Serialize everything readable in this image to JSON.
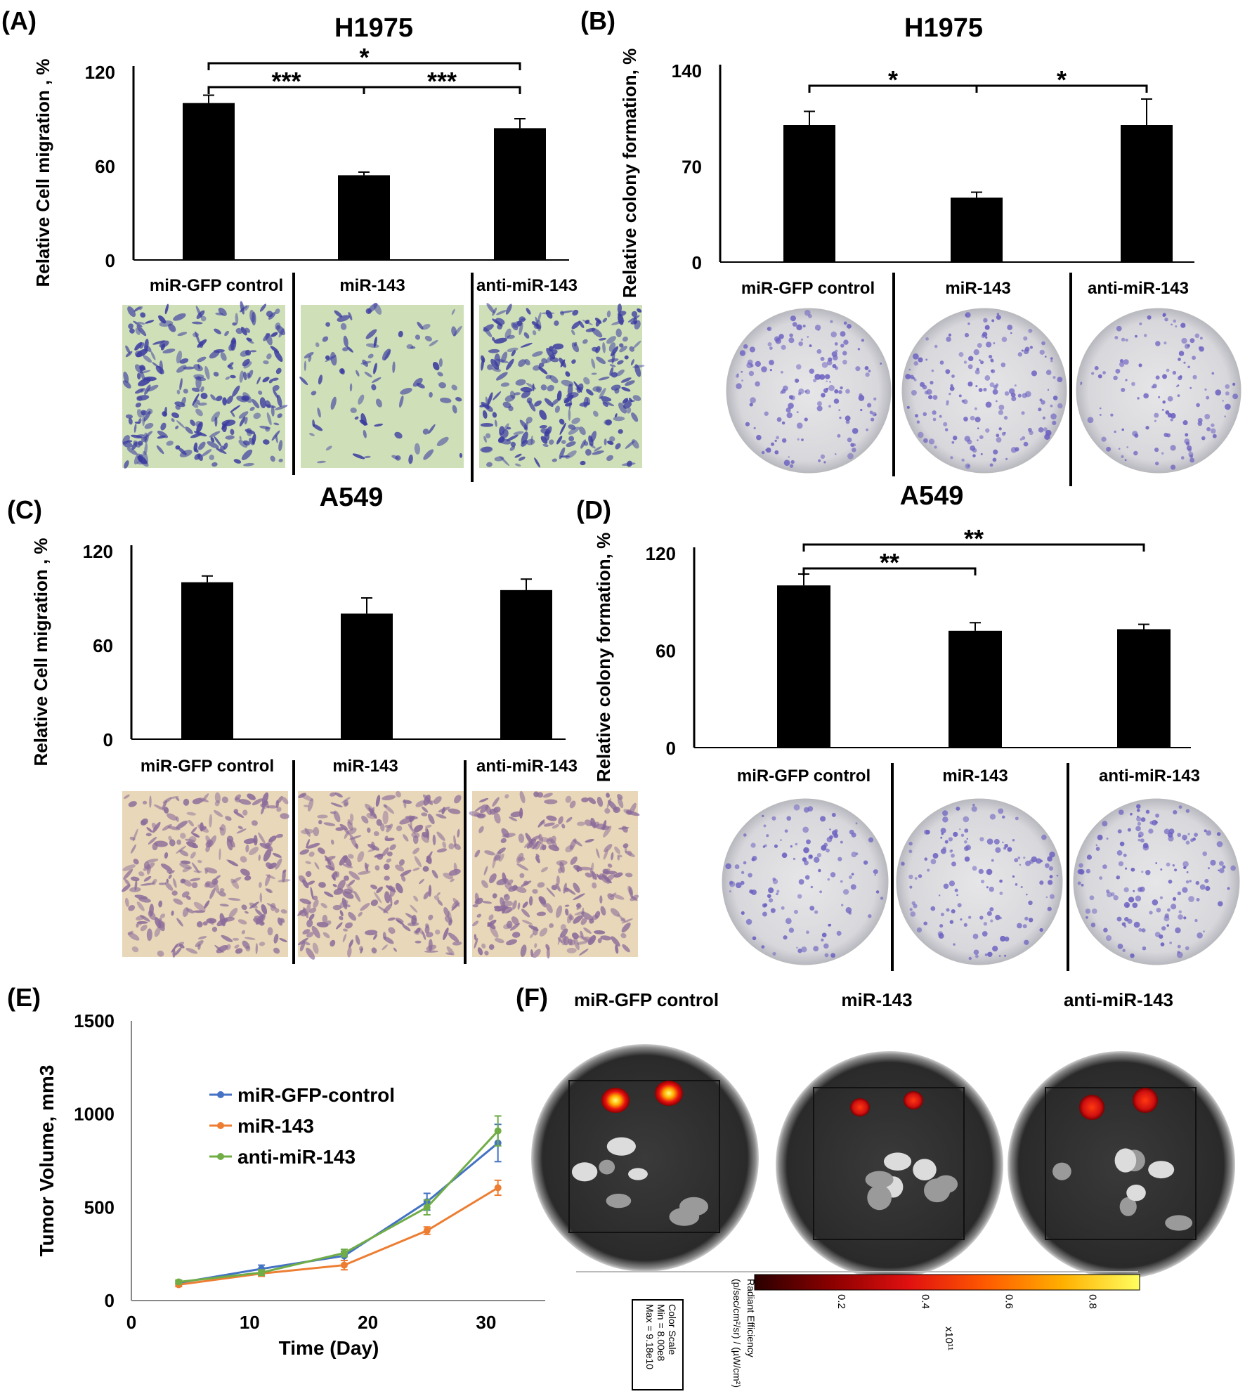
{
  "panel_letters": [
    "(A)",
    "(B)",
    "(C)",
    "(D)",
    "(E)",
    "(F)"
  ],
  "group_labels": [
    "miR-GFP control",
    "miR-143",
    "anti-miR-143"
  ],
  "chart_data": [
    {
      "panel": "(A)",
      "type": "bar",
      "title": "H1975",
      "ylabel": "Relative Cell migration , %",
      "ylim": [
        0,
        120
      ],
      "yticks": [
        "0",
        "60",
        "120"
      ],
      "categories": [
        "miR-GFP control",
        "miR-143",
        "anti-miR-143"
      ],
      "values": [
        100,
        54,
        84
      ],
      "errors": [
        5,
        2,
        6
      ],
      "significance": [
        {
          "from": 0,
          "to": 1,
          "label": "***",
          "level": 1
        },
        {
          "from": 1,
          "to": 2,
          "label": "***",
          "level": 1
        },
        {
          "from": 0,
          "to": 2,
          "label": "*",
          "level": 2
        }
      ],
      "image_style": "migration-blue"
    },
    {
      "panel": "(B)",
      "type": "bar",
      "title": "H1975",
      "ylabel": "Relative colony formation, %",
      "ylim": [
        0,
        140
      ],
      "yticks": [
        "0",
        "70",
        "140"
      ],
      "categories": [
        "miR-GFP control",
        "miR-143",
        "anti-miR-143"
      ],
      "values": [
        100,
        47,
        100
      ],
      "errors": [
        10,
        4,
        19
      ],
      "significance": [
        {
          "from": 0,
          "to": 1,
          "label": "*",
          "level": 1
        },
        {
          "from": 1,
          "to": 2,
          "label": "*",
          "level": 1
        }
      ],
      "image_style": "colony"
    },
    {
      "panel": "(C)",
      "type": "bar",
      "title": "A549",
      "ylabel": "Relative Cell migration , %",
      "ylim": [
        0,
        120
      ],
      "yticks": [
        "0",
        "60",
        "120"
      ],
      "categories": [
        "miR-GFP control",
        "miR-143",
        "anti-miR-143"
      ],
      "values": [
        100,
        80,
        95
      ],
      "errors": [
        4,
        10,
        7
      ],
      "significance": [],
      "image_style": "migration-purple"
    },
    {
      "panel": "(D)",
      "type": "bar",
      "title": "A549",
      "ylabel": "Relative colony formation, %",
      "ylim": [
        0,
        120
      ],
      "yticks": [
        "0",
        "60",
        "120"
      ],
      "categories": [
        "miR-GFP control",
        "miR-143",
        "anti-miR-143"
      ],
      "values": [
        100,
        72,
        73
      ],
      "errors": [
        7,
        5,
        3
      ],
      "significance": [
        {
          "from": 0,
          "to": 1,
          "label": "**",
          "level": 1
        },
        {
          "from": 0,
          "to": 2,
          "label": "**",
          "level": 2
        }
      ],
      "image_style": "colony"
    },
    {
      "panel": "(E)",
      "type": "line",
      "xlabel": "Time (Day)",
      "ylabel": "Tumor Volume,  mm3",
      "xlim": [
        0,
        35
      ],
      "ylim": [
        0,
        1500
      ],
      "xticks": [
        "0",
        "10",
        "20",
        "30"
      ],
      "yticks": [
        "0",
        "500",
        "1000",
        "1500"
      ],
      "x": [
        4,
        11,
        18,
        25,
        31
      ],
      "legend_position": "center-left",
      "series": [
        {
          "name": "miR-GFP-control",
          "color": "#4472c4",
          "values": [
            95,
            170,
            240,
            530,
            845
          ],
          "errors": [
            10,
            20,
            25,
            45,
            100
          ]
        },
        {
          "name": "miR-143",
          "color": "#ed7d31",
          "values": [
            85,
            145,
            190,
            375,
            605
          ],
          "errors": [
            10,
            15,
            25,
            20,
            40
          ]
        },
        {
          "name": "anti-miR-143",
          "color": "#70ad47",
          "values": [
            100,
            150,
            255,
            500,
            910
          ],
          "errors": [
            10,
            15,
            20,
            40,
            80
          ]
        }
      ]
    }
  ],
  "imaging": {
    "panel": "(F)",
    "groups": [
      "miR-GFP control",
      "miR-143",
      "anti-miR-143"
    ],
    "color_scale_box": [
      "Color Scale",
      "Min = 8.00e8",
      "Max = 9.18e10"
    ],
    "colorbar_title_lines": [
      "Radiant Efficiency",
      "(p/sec/cm²/sr) / (µW/cm²)"
    ],
    "colorbar_ticks": [
      "0.2",
      "0.4",
      "0.6",
      "0.8"
    ],
    "colorbar_exponent": "x10¹¹",
    "colorbar_colors": [
      "#2a0000",
      "#8b0000",
      "#e01010",
      "#ff5a00",
      "#ffb000",
      "#ffff60"
    ]
  }
}
